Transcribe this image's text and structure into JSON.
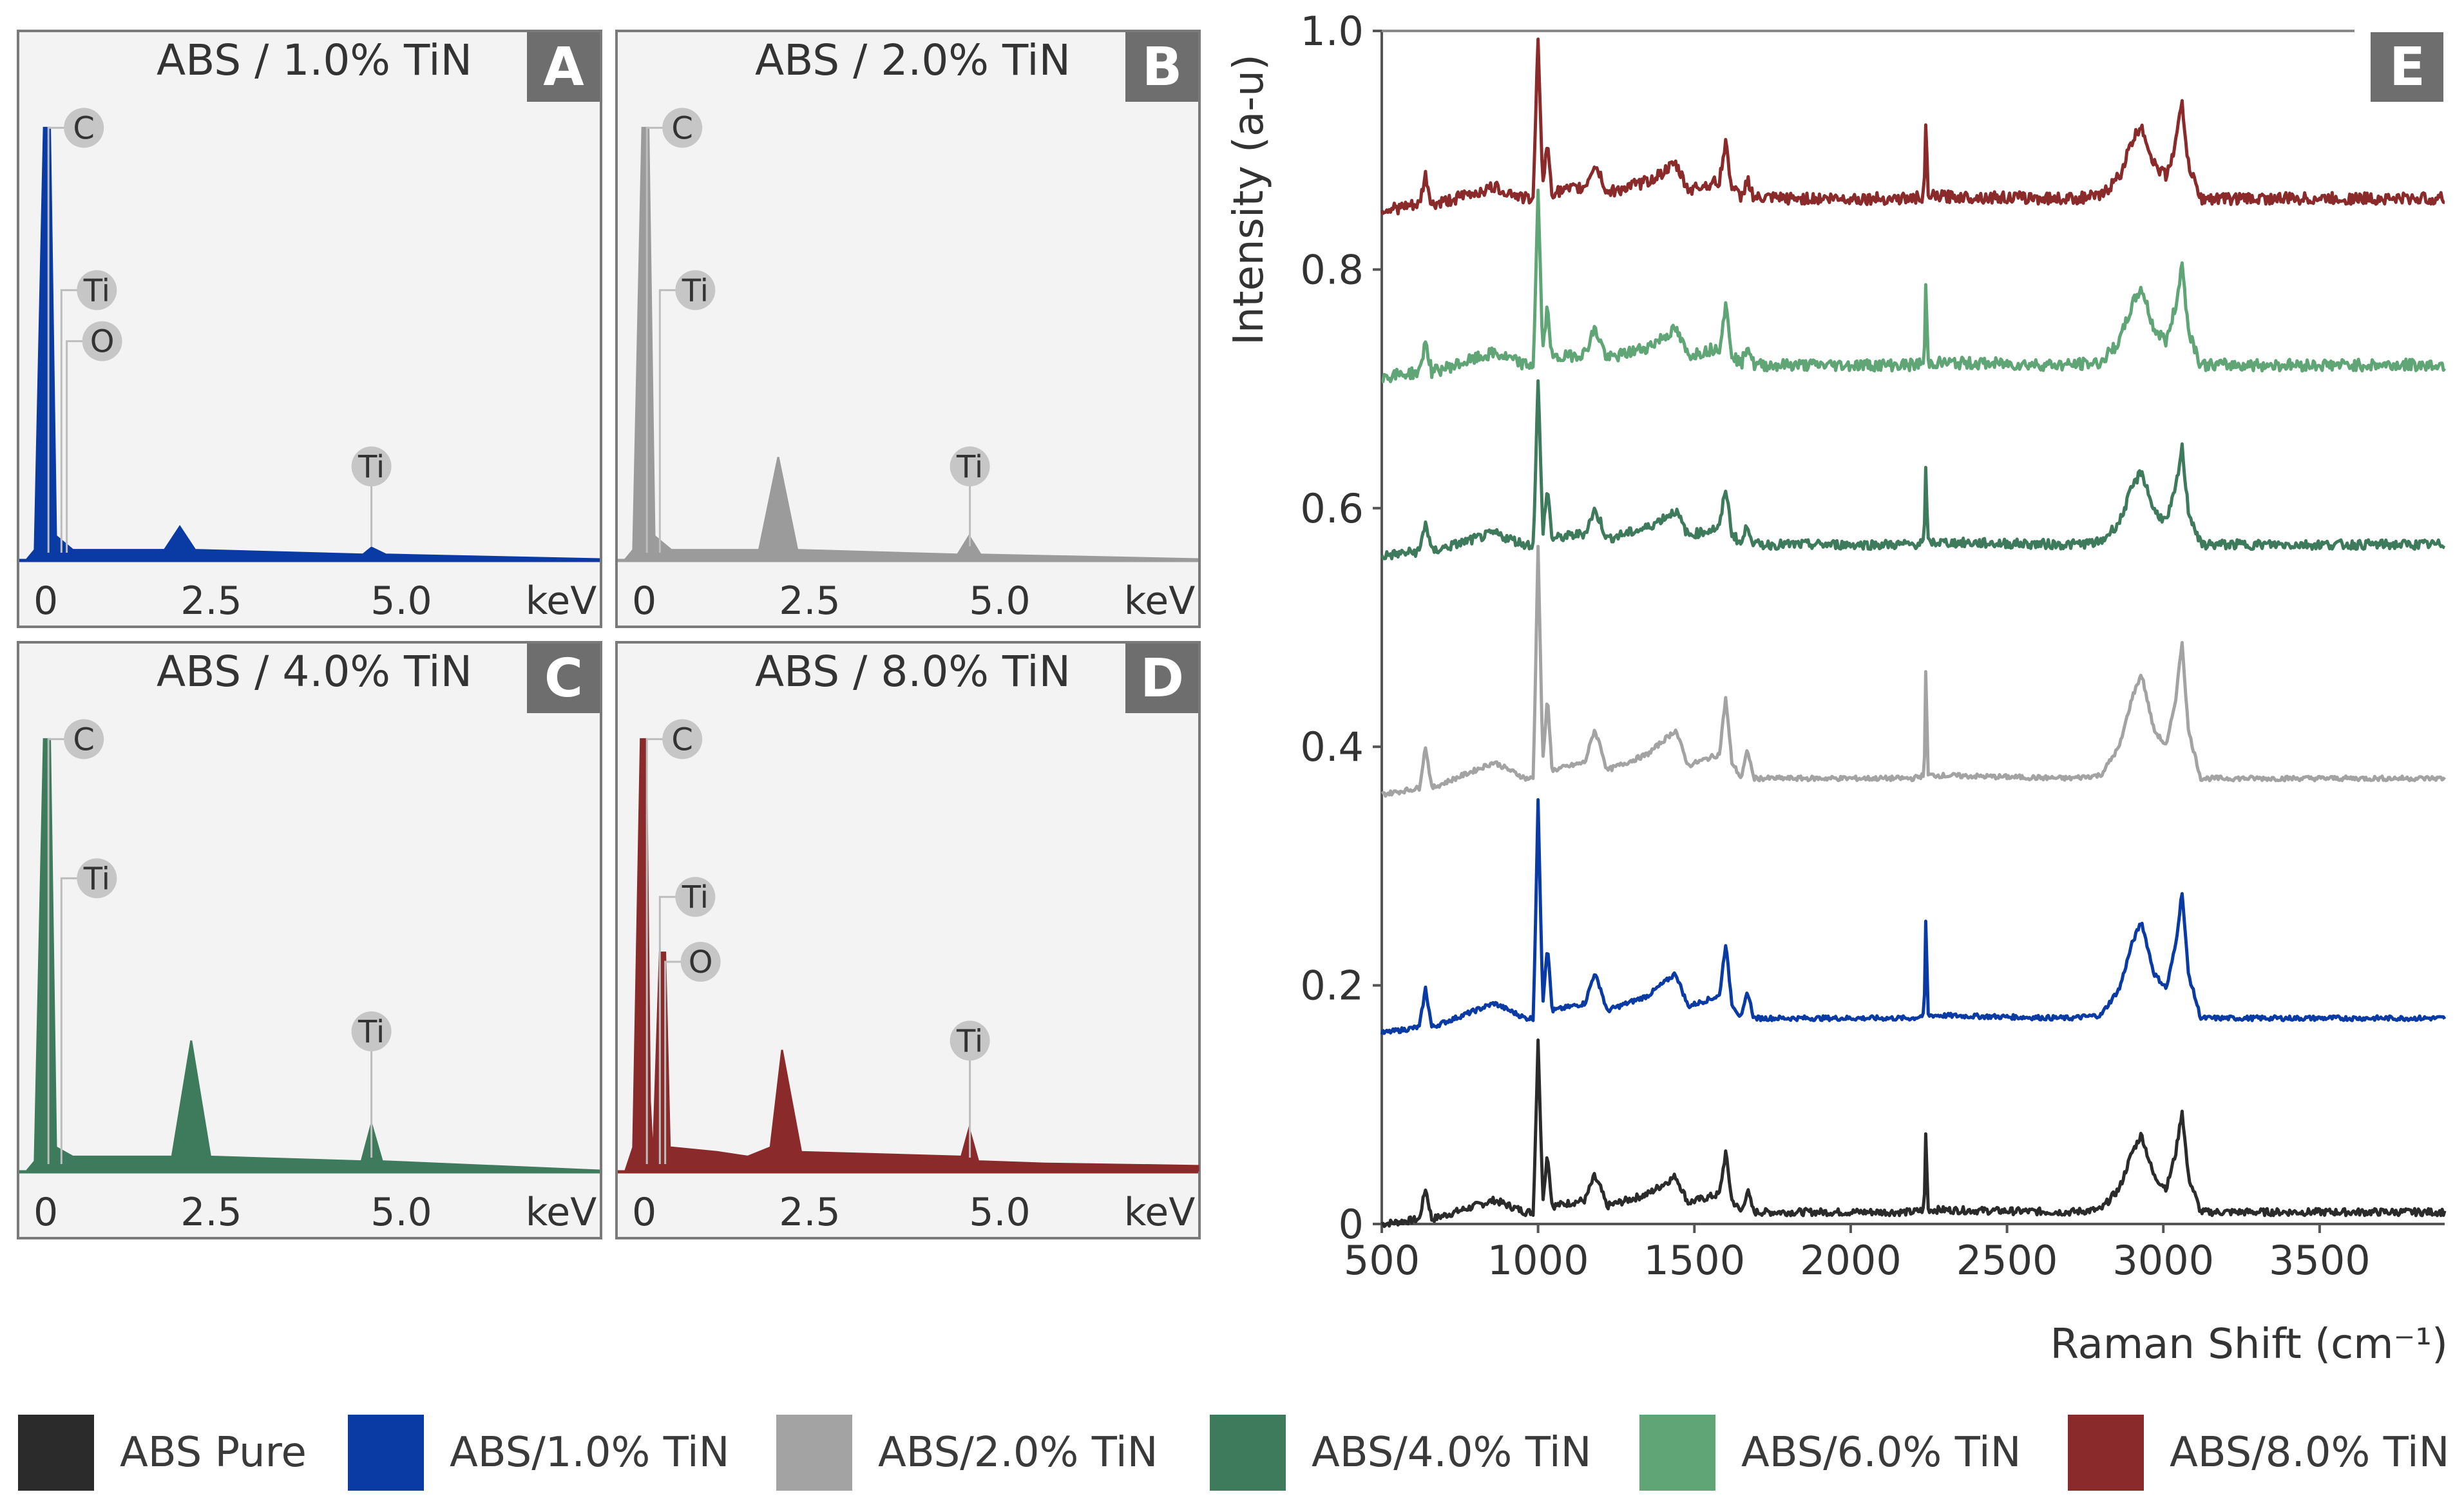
{
  "chart_data": [
    {
      "type": "area",
      "panel": "A",
      "title": "ABS / 1.0% TiN",
      "color": "#0a3aa3",
      "xlabel": "keV",
      "xlim": [
        0,
        7.5
      ],
      "ylim": [
        0,
        1
      ],
      "x_ticks": [
        "0",
        "2.5",
        "5.0",
        "keV"
      ],
      "peaks": [
        {
          "element": "C",
          "kev": 0.28,
          "height": 0.93
        },
        {
          "element": "Ti",
          "kev": 0.45,
          "height": 0.58
        },
        {
          "element": "O",
          "kev": 0.52,
          "height": 0.47
        },
        {
          "element": "Ti",
          "kev": 4.51,
          "height": 0.2
        }
      ],
      "spectrum": [
        [
          0,
          0
        ],
        [
          0.1,
          0.02
        ],
        [
          0.22,
          0.93
        ],
        [
          0.3,
          0.93
        ],
        [
          0.38,
          0.05
        ],
        [
          0.6,
          0.02
        ],
        [
          1.8,
          0.02
        ],
        [
          2.0,
          0.07
        ],
        [
          2.2,
          0.02
        ],
        [
          4.4,
          0.01
        ],
        [
          4.51,
          0.025
        ],
        [
          4.7,
          0.01
        ],
        [
          7.5,
          0
        ]
      ]
    },
    {
      "type": "area",
      "panel": "B",
      "title": "ABS / 2.0% TiN",
      "color": "#9b9b9b",
      "xlabel": "keV",
      "xlim": [
        0,
        7.5
      ],
      "ylim": [
        0,
        1
      ],
      "x_ticks": [
        "0",
        "2.5",
        "5.0",
        "keV"
      ],
      "peaks": [
        {
          "element": "C",
          "kev": 0.28,
          "height": 0.93
        },
        {
          "element": "Ti",
          "kev": 0.45,
          "height": 0.58
        },
        {
          "element": "Ti",
          "kev": 4.51,
          "height": 0.2
        }
      ],
      "spectrum": [
        [
          0,
          0
        ],
        [
          0.1,
          0.02
        ],
        [
          0.22,
          0.93
        ],
        [
          0.3,
          0.93
        ],
        [
          0.38,
          0.05
        ],
        [
          0.6,
          0.02
        ],
        [
          1.75,
          0.02
        ],
        [
          2.0,
          0.22
        ],
        [
          2.25,
          0.02
        ],
        [
          4.35,
          0.01
        ],
        [
          4.5,
          0.05
        ],
        [
          4.65,
          0.01
        ],
        [
          7.5,
          0
        ]
      ]
    },
    {
      "type": "area",
      "panel": "C",
      "title": "ABS / 4.0% TiN",
      "color": "#3e7a5c",
      "xlabel": "keV",
      "xlim": [
        0,
        7.5
      ],
      "ylim": [
        0,
        1
      ],
      "x_ticks": [
        "0",
        "2.5",
        "5.0",
        "keV"
      ],
      "peaks": [
        {
          "element": "C",
          "kev": 0.28,
          "height": 0.93
        },
        {
          "element": "Ti",
          "kev": 0.45,
          "height": 0.63
        },
        {
          "element": "Ti",
          "kev": 4.51,
          "height": 0.3
        }
      ],
      "spectrum": [
        [
          0,
          0
        ],
        [
          0.1,
          0.02
        ],
        [
          0.22,
          0.93
        ],
        [
          0.3,
          0.93
        ],
        [
          0.38,
          0.05
        ],
        [
          0.6,
          0.03
        ],
        [
          1.9,
          0.03
        ],
        [
          2.15,
          0.28
        ],
        [
          2.4,
          0.03
        ],
        [
          4.38,
          0.02
        ],
        [
          4.51,
          0.1
        ],
        [
          4.65,
          0.02
        ],
        [
          7.5,
          0
        ]
      ]
    },
    {
      "type": "area",
      "panel": "D",
      "title": "ABS / 8.0% TiN",
      "color": "#8b2a2a",
      "xlabel": "keV",
      "xlim": [
        0,
        7.5
      ],
      "ylim": [
        0,
        1
      ],
      "x_ticks": [
        "0",
        "2.5",
        "5.0",
        "keV"
      ],
      "peaks": [
        {
          "element": "C",
          "kev": 0.28,
          "height": 0.93
        },
        {
          "element": "Ti",
          "kev": 0.45,
          "height": 0.59
        },
        {
          "element": "O",
          "kev": 0.52,
          "height": 0.45
        },
        {
          "element": "Ti",
          "kev": 4.51,
          "height": 0.28
        }
      ],
      "spectrum": [
        [
          0,
          0
        ],
        [
          0.1,
          0.05
        ],
        [
          0.2,
          0.93
        ],
        [
          0.27,
          0.93
        ],
        [
          0.32,
          0.15
        ],
        [
          0.36,
          0.02
        ],
        [
          0.45,
          0.47
        ],
        [
          0.52,
          0.47
        ],
        [
          0.58,
          0.05
        ],
        [
          1.2,
          0.04
        ],
        [
          1.6,
          0.03
        ],
        [
          1.9,
          0.05
        ],
        [
          2.05,
          0.26
        ],
        [
          2.3,
          0.04
        ],
        [
          4.4,
          0.03
        ],
        [
          4.5,
          0.09
        ],
        [
          4.62,
          0.02
        ],
        [
          5.5,
          0.015
        ],
        [
          7.5,
          0.01
        ]
      ]
    },
    {
      "type": "line",
      "panel": "E",
      "xlabel": "Raman Shift (cm⁻¹)",
      "ylabel": "Intensity (a-u)",
      "xlim": [
        500,
        3900
      ],
      "ylim": [
        0,
        1.0
      ],
      "x_ticks": [
        500,
        1000,
        1500,
        2000,
        2500,
        3000,
        3500
      ],
      "y_ticks": [
        0,
        0.2,
        0.4,
        0.6,
        0.8,
        1.0
      ],
      "y_tick_labels": [
        "0",
        "0.2",
        "0.4",
        "0.6",
        "0.8",
        "1.0"
      ],
      "shape": [
        [
          500,
          0.0
        ],
        [
          620,
          0.004
        ],
        [
          640,
          0.03
        ],
        [
          660,
          0.004
        ],
        [
          760,
          0.012
        ],
        [
          860,
          0.02
        ],
        [
          960,
          0.01
        ],
        [
          985,
          0.01
        ],
        [
          1000,
          0.155
        ],
        [
          1015,
          0.02
        ],
        [
          1030,
          0.06
        ],
        [
          1045,
          0.015
        ],
        [
          1150,
          0.02
        ],
        [
          1180,
          0.04
        ],
        [
          1200,
          0.03
        ],
        [
          1220,
          0.015
        ],
        [
          1350,
          0.025
        ],
        [
          1440,
          0.04
        ],
        [
          1480,
          0.018
        ],
        [
          1580,
          0.025
        ],
        [
          1600,
          0.06
        ],
        [
          1620,
          0.02
        ],
        [
          1650,
          0.01
        ],
        [
          1670,
          0.028
        ],
        [
          1690,
          0.01
        ],
        [
          2200,
          0.01
        ],
        [
          2235,
          0.012
        ],
        [
          2240,
          0.075
        ],
        [
          2248,
          0.012
        ],
        [
          2700,
          0.01
        ],
        [
          2800,
          0.012
        ],
        [
          2860,
          0.03
        ],
        [
          2900,
          0.06
        ],
        [
          2930,
          0.075
        ],
        [
          2970,
          0.04
        ],
        [
          3010,
          0.03
        ],
        [
          3040,
          0.06
        ],
        [
          3060,
          0.095
        ],
        [
          3080,
          0.04
        ],
        [
          3120,
          0.01
        ],
        [
          3900,
          0.01
        ]
      ],
      "series": [
        {
          "name": "ABS Pure",
          "color": "#2b2b2b",
          "offset": 0.0,
          "scale": 1.0,
          "noise": 0.003
        },
        {
          "name": "ABS/1.0% TiN",
          "color": "#0a3aa3",
          "offset": 0.16,
          "scale": 1.25,
          "noise": 0.002
        },
        {
          "name": "ABS/2.0% TiN",
          "color": "#a3a3a3",
          "offset": 0.36,
          "scale": 1.35,
          "noise": 0.002
        },
        {
          "name": "ABS/4.0% TiN",
          "color": "#3e7a5c",
          "offset": 0.56,
          "scale": 0.95,
          "noise": 0.004
        },
        {
          "name": "ABS/6.0% TiN",
          "color": "#5fa575",
          "offset": 0.71,
          "scale": 1.0,
          "noise": 0.005
        },
        {
          "name": "ABS/8.0% TiN",
          "color": "#8b2a2a",
          "offset": 0.85,
          "scale": 0.95,
          "noise": 0.005
        }
      ]
    }
  ],
  "legend": {
    "entries": [
      {
        "label": "ABS Pure",
        "color": "#2b2b2b"
      },
      {
        "label": "ABS/1.0% TiN",
        "color": "#0a3aa3"
      },
      {
        "label": "ABS/2.0% TiN",
        "color": "#a3a3a3"
      },
      {
        "label": "ABS/4.0% TiN",
        "color": "#3e7a5c"
      },
      {
        "label": "ABS/6.0% TiN",
        "color": "#5fa575"
      },
      {
        "label": "ABS/8.0% TiN",
        "color": "#8b2a2a"
      }
    ]
  }
}
